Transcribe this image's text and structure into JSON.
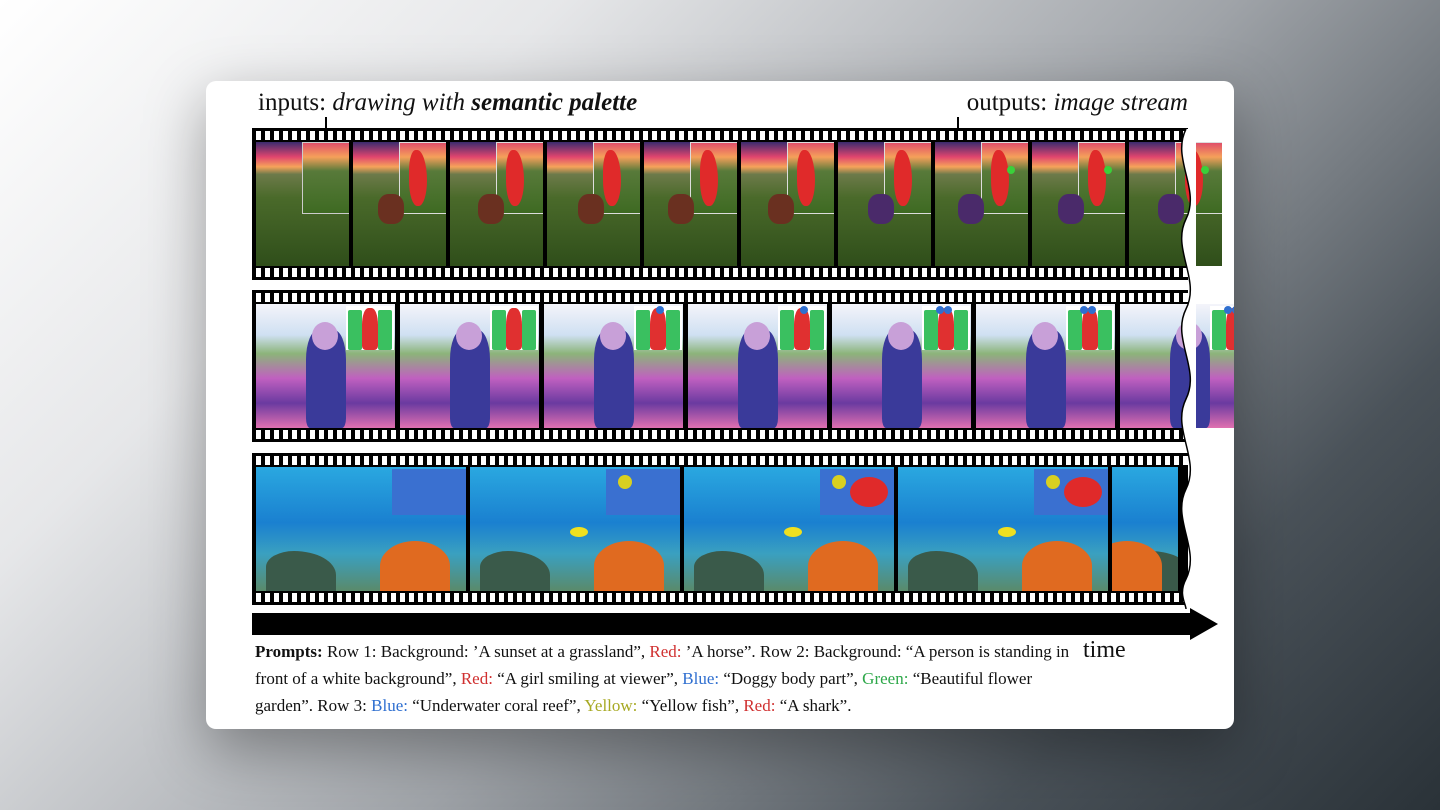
{
  "header": {
    "inputs_label": "inputs:",
    "inputs_text": "drawing with",
    "inputs_bold": "semantic palette",
    "outputs_label": "outputs:",
    "outputs_text": "image stream"
  },
  "time_label": "time",
  "prompts": {
    "title": "Prompts:",
    "s1": " Row 1: Background: ’A sunset at a grassland”, ",
    "red1": "Red:",
    "s2": " ’A horse”. Row 2: Background: “A person is standing in front of a white background”, ",
    "red2": "Red:",
    "s3": " “A girl smiling at viewer”, ",
    "blue2": "Blue:",
    "s4": " “Doggy body part”, ",
    "green2": "Green:",
    "s5": " “Beautiful flower garden”. Row 3: ",
    "blue3": "Blue:",
    "s6": " “Underwater coral reef”, ",
    "yellow3": "Yellow:",
    "s7": " “Yellow fish”, ",
    "red3": "Red:",
    "s8": " “A shark”."
  },
  "colors": {
    "red": "#d03030",
    "blue": "#2f6fd0",
    "green": "#2ea84a",
    "yellow": "#a7a923"
  }
}
